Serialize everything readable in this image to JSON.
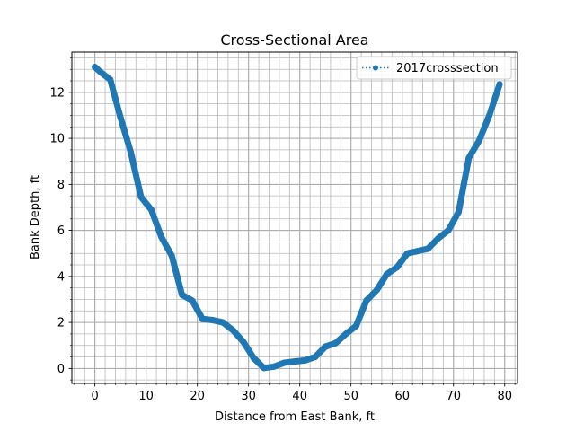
{
  "chart_data": {
    "type": "line",
    "title": "Cross-Sectional Area",
    "xlabel": "Distance from East Bank, ft",
    "ylabel": "Bank Depth, ft",
    "xlim": [
      -4.5,
      82.5
    ],
    "ylim": [
      -0.65,
      13.75
    ],
    "xticks": [
      0,
      10,
      20,
      30,
      40,
      50,
      60,
      70,
      80
    ],
    "yticks": [
      0,
      2,
      4,
      6,
      8,
      10,
      12
    ],
    "x_minor_step": 2,
    "y_minor_step": 0.5,
    "grid": "major and minor",
    "legend_position": "upper right",
    "series_color": "#1f77b4",
    "series": [
      {
        "name": "2017crosssection",
        "style": "dotted line with point markers",
        "x": [
          0,
          1,
          3,
          5,
          7,
          9,
          11,
          13,
          15,
          17,
          19,
          21,
          23,
          25,
          27,
          29,
          31,
          33,
          35,
          37,
          39,
          41,
          43,
          45,
          47,
          49,
          51,
          53,
          55,
          57,
          59,
          61,
          63,
          65,
          67,
          69,
          71,
          73,
          75,
          77,
          79
        ],
        "y": [
          13.1,
          12.9,
          12.55,
          10.9,
          9.4,
          7.45,
          6.9,
          5.7,
          4.9,
          3.2,
          2.95,
          2.15,
          2.1,
          2.0,
          1.65,
          1.15,
          0.45,
          0.02,
          0.08,
          0.25,
          0.3,
          0.35,
          0.5,
          0.95,
          1.1,
          1.5,
          1.85,
          2.95,
          3.4,
          4.1,
          4.4,
          5.0,
          5.1,
          5.2,
          5.65,
          6.0,
          6.8,
          9.15,
          9.9,
          11.0,
          12.35
        ]
      }
    ]
  }
}
